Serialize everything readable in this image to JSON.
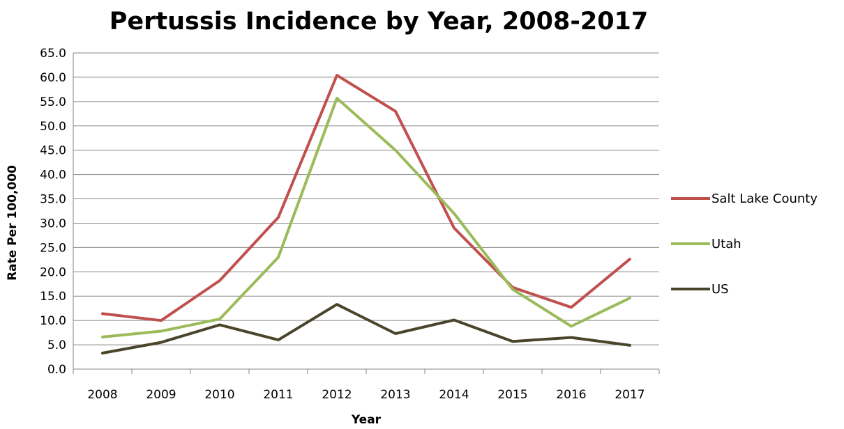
{
  "chart_data": {
    "type": "line",
    "title": "Pertussis Incidence by Year, 2008-2017",
    "xlabel": "Year",
    "ylabel": "Rate Per 100,000",
    "categories": [
      "2008",
      "2009",
      "2010",
      "2011",
      "2012",
      "2013",
      "2014",
      "2015",
      "2016",
      "2017"
    ],
    "ylim": [
      0,
      65
    ],
    "yticks": [
      "0.0",
      "5.0",
      "10.0",
      "15.0",
      "20.0",
      "25.0",
      "30.0",
      "35.0",
      "40.0",
      "45.0",
      "50.0",
      "55.0",
      "60.0",
      "65.0"
    ],
    "grid": true,
    "legend_position": "right",
    "series": [
      {
        "name": "Salt Lake County",
        "color": "#c0504d",
        "values": [
          11.4,
          10.0,
          18.2,
          31.2,
          60.4,
          53.0,
          29.0,
          16.8,
          12.7,
          22.6
        ]
      },
      {
        "name": "Utah",
        "color": "#9bbb59",
        "values": [
          6.6,
          7.8,
          10.3,
          23.0,
          55.7,
          45.0,
          32.0,
          16.4,
          8.8,
          14.6
        ]
      },
      {
        "name": "US",
        "color": "#4a452a",
        "values": [
          3.3,
          5.5,
          9.1,
          6.0,
          13.3,
          7.3,
          10.1,
          5.7,
          6.5,
          4.9
        ]
      }
    ]
  }
}
